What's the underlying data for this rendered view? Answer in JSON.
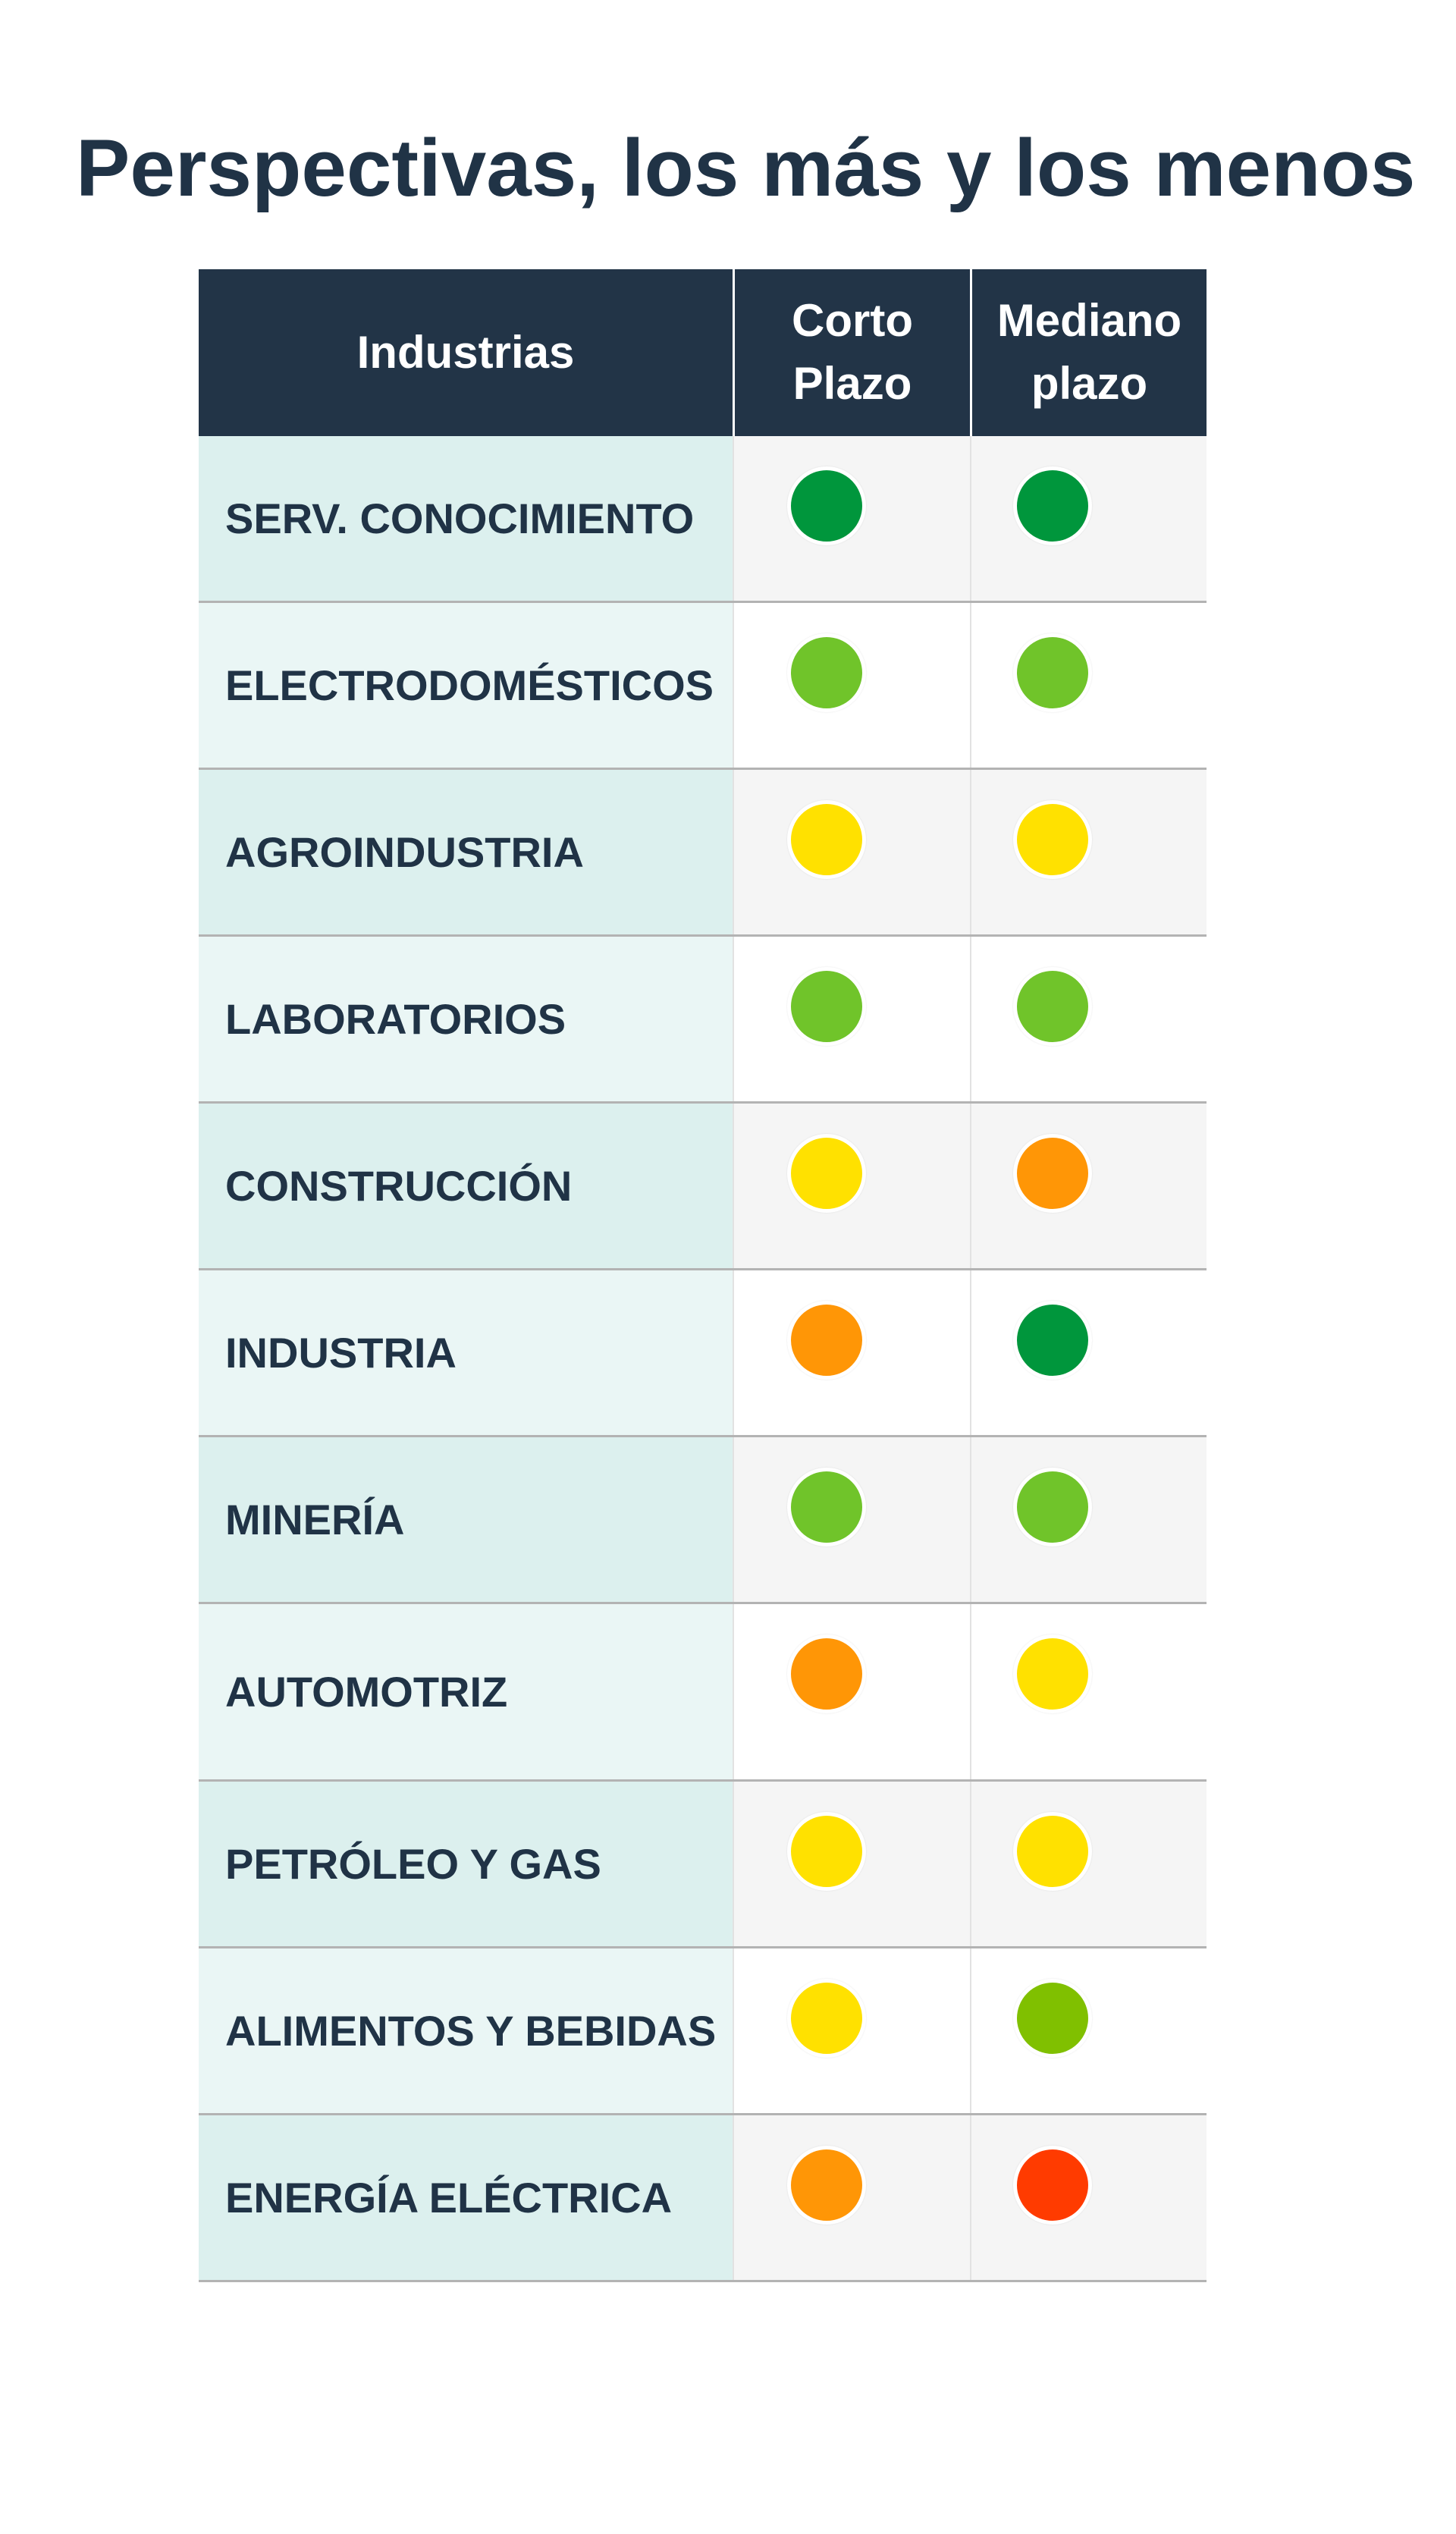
{
  "title": "Perspectivas, los más y los menos",
  "table": {
    "headers": {
      "industry": "Industrias",
      "short_term": [
        "Corto",
        "Plazo"
      ],
      "medium_term": [
        "Mediano",
        "plazo"
      ]
    },
    "rows": [
      {
        "industry": "SERV. CONOCIMIENTO",
        "short_term_color": "#00963c",
        "medium_term_color": "#00963c"
      },
      {
        "industry": "ELECTRODOMÉSTICOS",
        "short_term_color": "#70c42a",
        "medium_term_color": "#70c42a"
      },
      {
        "industry": "AGROINDUSTRIA",
        "short_term_color": "#ffe100",
        "medium_term_color": "#ffe100"
      },
      {
        "industry": "LABORATORIOS",
        "short_term_color": "#70c42a",
        "medium_term_color": "#70c42a"
      },
      {
        "industry": "CONSTRUCCIÓN",
        "short_term_color": "#ffe100",
        "medium_term_color": "#ff9606"
      },
      {
        "industry": "INDUSTRIA",
        "short_term_color": "#ff9606",
        "medium_term_color": "#00963c"
      },
      {
        "industry": "MINERÍA",
        "short_term_color": "#70c42a",
        "medium_term_color": "#70c42a"
      },
      {
        "industry": "AUTOMOTRIZ",
        "short_term_color": "#ff9606",
        "medium_term_color": "#ffe100"
      },
      {
        "industry": "PETRÓLEO Y GAS",
        "short_term_color": "#ffe100",
        "medium_term_color": "#ffe100"
      },
      {
        "industry": "ALIMENTOS Y BEBIDAS",
        "short_term_color": "#ffe100",
        "medium_term_color": "#80c000"
      },
      {
        "industry": "ENERGÍA ELÉCTRICA",
        "short_term_color": "#ff9606",
        "medium_term_color": "#ff3b00"
      }
    ]
  }
}
